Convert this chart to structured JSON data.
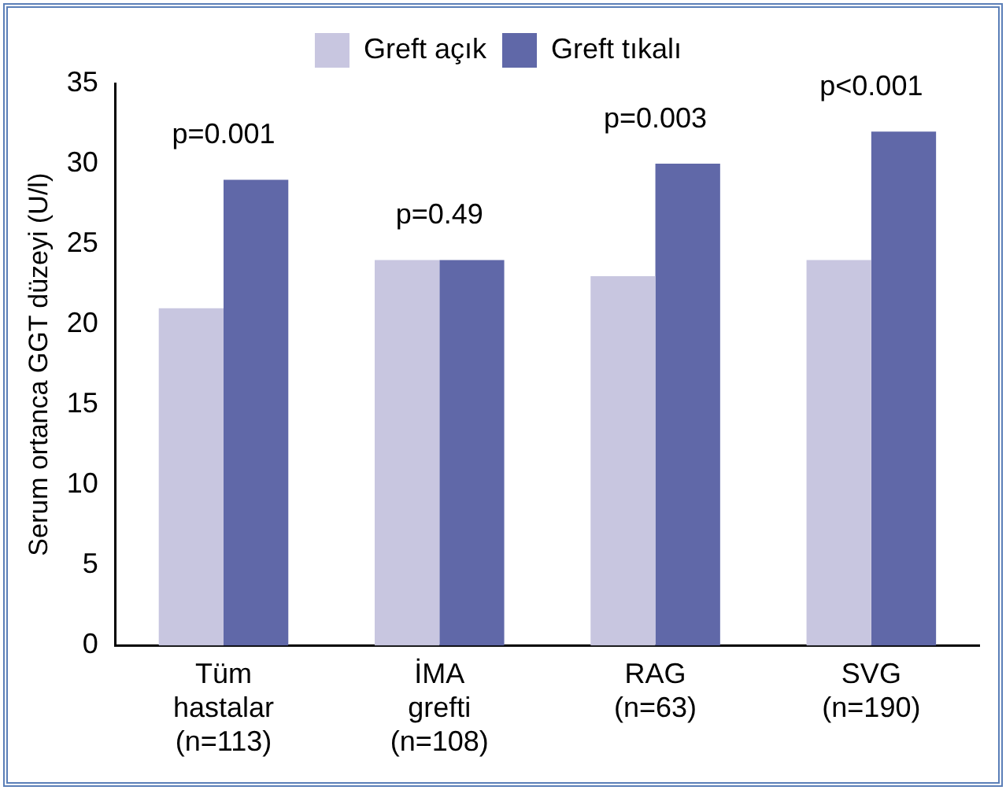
{
  "chart_data": {
    "type": "bar",
    "ylabel": "Serum ortanca GGT düzeyi (U/l)",
    "categories": [
      "Tüm\nhastalar\n(n=113)",
      "İMA\ngrefti\n(n=108)",
      "RAG\n(n=63)",
      "SVG\n(n=190)"
    ],
    "series": [
      {
        "name": "Greft açık",
        "color": "#c8c6e0",
        "values": [
          21,
          24,
          23,
          24
        ]
      },
      {
        "name": "Greft tıkalı",
        "color": "#6068a8",
        "values": [
          29,
          24,
          30,
          32
        ]
      }
    ],
    "ylim": [
      0,
      35
    ],
    "yticks": [
      0,
      5,
      10,
      15,
      20,
      25,
      30,
      35
    ],
    "grid": false,
    "legend": "top",
    "annotations": [
      "p=0.001",
      "p=0.49",
      "p=0.003",
      "p<0.001"
    ]
  }
}
